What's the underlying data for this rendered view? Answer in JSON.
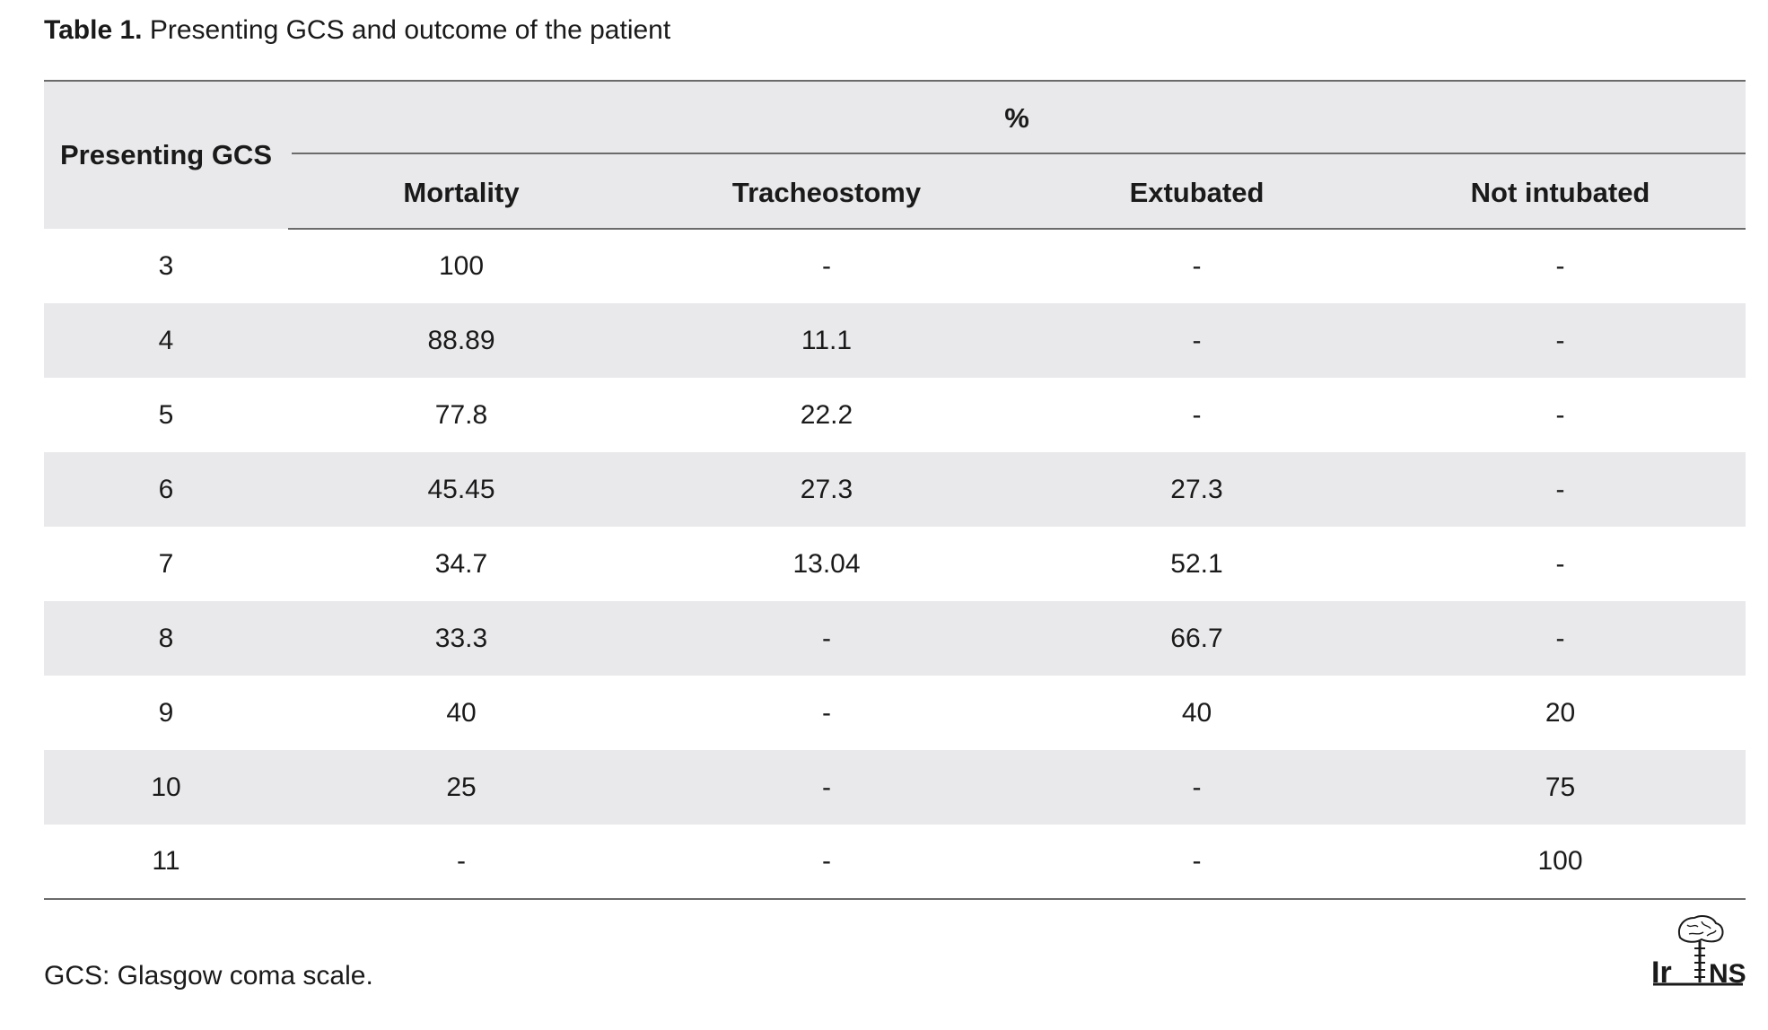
{
  "caption": {
    "label": "Table 1.",
    "text": "Presenting GCS and outcome of the patient"
  },
  "table": {
    "row_header": "Presenting GCS",
    "group_header": "%",
    "columns": [
      "Mortality",
      "Tracheostomy",
      "Extubated",
      "Not intubated"
    ],
    "rows": [
      [
        "3",
        "100",
        "-",
        "-",
        "-"
      ],
      [
        "4",
        "88.89",
        "11.1",
        "-",
        "-"
      ],
      [
        "5",
        "77.8",
        "22.2",
        "-",
        "-"
      ],
      [
        "6",
        "45.45",
        "27.3",
        "27.3",
        "-"
      ],
      [
        "7",
        "34.7",
        "13.04",
        "52.1",
        "-"
      ],
      [
        "8",
        "33.3",
        "-",
        "66.7",
        "-"
      ],
      [
        "9",
        "40",
        "-",
        "40",
        "20"
      ],
      [
        "10",
        "25",
        "-",
        "-",
        "75"
      ],
      [
        "11",
        "-",
        "-",
        "-",
        "100"
      ]
    ]
  },
  "footnote": "GCS: Glasgow coma scale.",
  "logo": {
    "icon": "brain-spine-logo-icon",
    "text": "IrJNS"
  }
}
